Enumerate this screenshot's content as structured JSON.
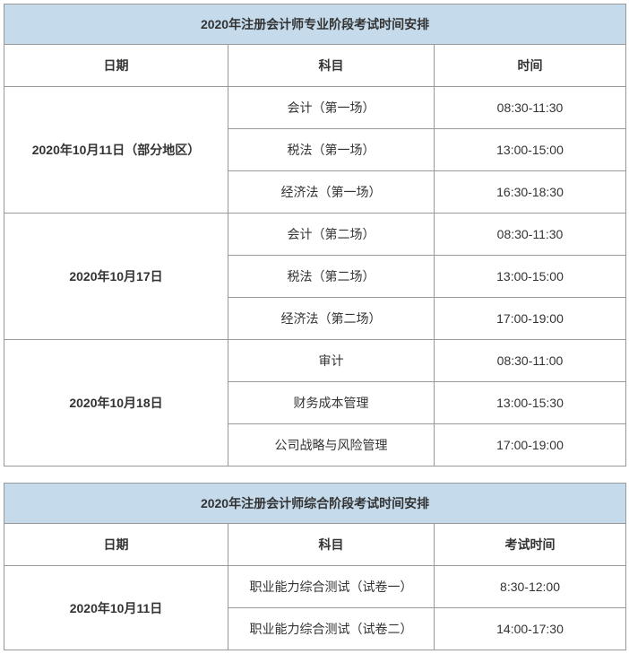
{
  "table1": {
    "title": "2020年注册会计师专业阶段考试时间安排",
    "headers": {
      "date": "日期",
      "subject": "科目",
      "time": "时间"
    },
    "groups": [
      {
        "date": "2020年10月11日（部分地区）",
        "rows": [
          {
            "subject": "会计（第一场）",
            "time": "08:30-11:30"
          },
          {
            "subject": "税法（第一场）",
            "time": "13:00-15:00"
          },
          {
            "subject": "经济法（第一场）",
            "time": "16:30-18:30"
          }
        ]
      },
      {
        "date": "2020年10月17日",
        "rows": [
          {
            "subject": "会计（第二场）",
            "time": "08:30-11:30"
          },
          {
            "subject": "税法（第二场）",
            "time": "13:00-15:00"
          },
          {
            "subject": "经济法（第二场）",
            "time": "17:00-19:00"
          }
        ]
      },
      {
        "date": "2020年10月18日",
        "rows": [
          {
            "subject": "审计",
            "time": "08:30-11:00"
          },
          {
            "subject": "财务成本管理",
            "time": "13:00-15:30"
          },
          {
            "subject": "公司战略与风险管理",
            "time": "17:00-19:00"
          }
        ]
      }
    ]
  },
  "table2": {
    "title": "2020年注册会计师综合阶段考试时间安排",
    "headers": {
      "date": "日期",
      "subject": "科目",
      "time": "考试时间"
    },
    "groups": [
      {
        "date": "2020年10月11日",
        "rows": [
          {
            "subject": "职业能力综合测试（试卷一）",
            "time": "8:30-12:00"
          },
          {
            "subject": "职业能力综合测试（试卷二）",
            "time": "14:00-17:30"
          }
        ]
      }
    ]
  }
}
